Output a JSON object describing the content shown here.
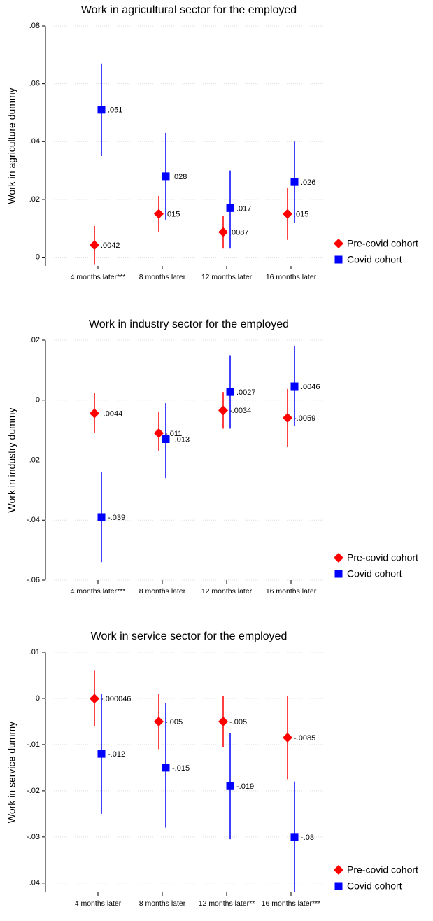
{
  "chart_data": [
    {
      "type": "errorbar",
      "title": "Work in agricultural sector for the employed",
      "y_label": "Work in agriculture dummy",
      "categories": [
        "4 months later***",
        "8 months later",
        "12 months later",
        "16 months later"
      ],
      "ylim": [
        -0.003,
        0.08
      ],
      "yticks": [
        0,
        {
          "value": 0.02,
          "label": ".02"
        },
        {
          "value": 0.04,
          "label": ".04"
        },
        {
          "value": 0.06,
          "label": ".06"
        },
        {
          "value": 0.08,
          "label": ".08"
        }
      ],
      "grid": true,
      "legend": "right",
      "series": [
        {
          "name": "Pre-covid cohort",
          "color": "#ff0000",
          "marker": "diamond",
          "values": [
            0.0042,
            0.015,
            0.0087,
            0.015
          ],
          "value_labels": [
            ".0042",
            ".015",
            ".0087",
            ".015"
          ],
          "low": [
            -0.0024,
            0.0088,
            0.003,
            0.006
          ],
          "high": [
            0.0108,
            0.0212,
            0.0144,
            0.024
          ]
        },
        {
          "name": "Covid cohort",
          "color": "#0000ff",
          "marker": "square",
          "values": [
            0.051,
            0.028,
            0.017,
            0.026
          ],
          "value_labels": [
            ".051",
            ".028",
            ".017",
            ".026"
          ],
          "low": [
            0.035,
            0.013,
            0.003,
            0.012
          ],
          "high": [
            0.067,
            0.043,
            0.03,
            0.04
          ]
        }
      ]
    },
    {
      "type": "errorbar",
      "title": "Work in industry sector for the employed",
      "y_label": "Work in industry dummy",
      "categories": [
        "4 months later***",
        "8 months later",
        "12 months later",
        "16 months later"
      ],
      "ylim": [
        -0.06,
        0.02
      ],
      "yticks": [
        {
          "value": -0.06,
          "label": "-.06"
        },
        {
          "value": -0.04,
          "label": "-.04"
        },
        {
          "value": -0.02,
          "label": "-.02"
        },
        0,
        {
          "value": 0.02,
          "label": ".02"
        }
      ],
      "grid": true,
      "legend": "right",
      "series": [
        {
          "name": "Pre-covid cohort",
          "color": "#ff0000",
          "marker": "diamond",
          "values": [
            -0.0044,
            -0.011,
            -0.0034,
            -0.0059
          ],
          "value_labels": [
            "-.0044",
            "-.011",
            "-.0034",
            "-.0059"
          ],
          "low": [
            -0.011,
            -0.017,
            -0.0095,
            -0.0155
          ],
          "high": [
            0.0023,
            -0.004,
            0.0027,
            0.0037
          ]
        },
        {
          "name": "Covid cohort",
          "color": "#0000ff",
          "marker": "square",
          "values": [
            -0.039,
            -0.013,
            0.0027,
            0.0046
          ],
          "value_labels": [
            "-.039",
            "-.013",
            ".0027",
            ".0046"
          ],
          "low": [
            -0.054,
            -0.026,
            -0.0095,
            -0.0085
          ],
          "high": [
            -0.024,
            -0.001,
            0.015,
            0.018
          ]
        }
      ]
    },
    {
      "type": "errorbar",
      "title": "Work in service sector for the employed",
      "y_label": "Work in service dummy",
      "categories": [
        "4 months later",
        "8 months later",
        "12 months later**",
        "16 months later***"
      ],
      "ylim": [
        -0.042,
        0.01
      ],
      "yticks": [
        {
          "value": -0.04,
          "label": "-.04"
        },
        {
          "value": -0.03,
          "label": "-.03"
        },
        {
          "value": -0.02,
          "label": "-.02"
        },
        {
          "value": -0.01,
          "label": "-.01"
        },
        0,
        {
          "value": 0.01,
          "label": ".01"
        }
      ],
      "grid": true,
      "legend": "right",
      "series": [
        {
          "name": "Pre-covid cohort",
          "color": "#ff0000",
          "marker": "diamond",
          "values": [
            -4.6e-05,
            -0.005,
            -0.005,
            -0.0085
          ],
          "value_labels": [
            "-.000046",
            "-.005",
            "-.005",
            "-.0085"
          ],
          "low": [
            -0.006,
            -0.011,
            -0.0105,
            -0.0175
          ],
          "high": [
            0.006,
            0.001,
            0.0005,
            0.0005
          ]
        },
        {
          "name": "Covid cohort",
          "color": "#0000ff",
          "marker": "square",
          "values": [
            -0.012,
            -0.015,
            -0.019,
            -0.03
          ],
          "value_labels": [
            "-.012",
            "-.015",
            "-.019",
            "-.03"
          ],
          "low": [
            -0.025,
            -0.028,
            -0.0305,
            -0.042
          ],
          "high": [
            0.001,
            -0.001,
            -0.0075,
            -0.018
          ]
        }
      ]
    }
  ]
}
